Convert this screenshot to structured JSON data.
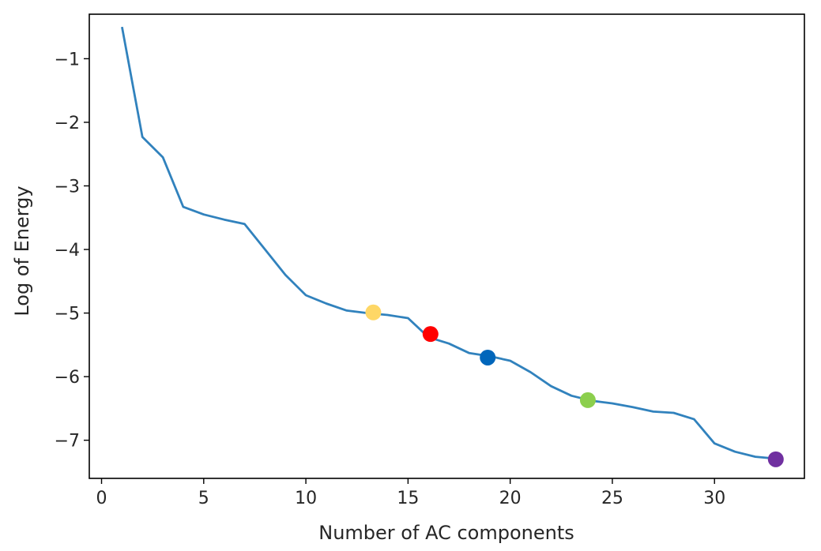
{
  "chart_data": {
    "type": "line",
    "title": "",
    "xlabel": "Number of AC components",
    "ylabel": "Log of Energy",
    "xlim": [
      -0.6,
      34.4
    ],
    "ylim": [
      -7.6,
      -0.3
    ],
    "xticks": [
      0,
      5,
      10,
      15,
      20,
      25,
      30
    ],
    "yticks": [
      -1,
      -2,
      -3,
      -4,
      -5,
      -6,
      -7
    ],
    "grid": false,
    "line_color": "#3182bd",
    "series": [
      {
        "x": [
          1,
          2,
          3,
          4,
          5,
          6,
          7,
          8,
          9,
          10,
          11,
          12,
          13,
          14,
          15,
          16,
          17,
          18,
          19,
          20,
          21,
          22,
          23,
          24,
          25,
          26,
          27,
          28,
          29,
          30,
          31,
          32,
          33
        ],
        "y": [
          -0.5,
          -2.23,
          -2.55,
          -3.33,
          -3.45,
          -3.53,
          -3.6,
          -4.0,
          -4.4,
          -4.72,
          -4.85,
          -4.96,
          -5.0,
          -5.03,
          -5.08,
          -5.38,
          -5.48,
          -5.63,
          -5.68,
          -5.75,
          -5.93,
          -6.15,
          -6.3,
          -6.38,
          -6.42,
          -6.48,
          -6.55,
          -6.57,
          -6.67,
          -7.05,
          -7.18,
          -7.26,
          -7.29
        ]
      }
    ],
    "markers": [
      {
        "x": 13.3,
        "y": -4.99,
        "color": "#fed766"
      },
      {
        "x": 16.1,
        "y": -5.33,
        "color": "#ff0000"
      },
      {
        "x": 18.9,
        "y": -5.7,
        "color": "#0066bb"
      },
      {
        "x": 23.8,
        "y": -6.37,
        "color": "#8ccf4d"
      },
      {
        "x": 33.0,
        "y": -7.3,
        "color": "#7030a0"
      }
    ]
  }
}
